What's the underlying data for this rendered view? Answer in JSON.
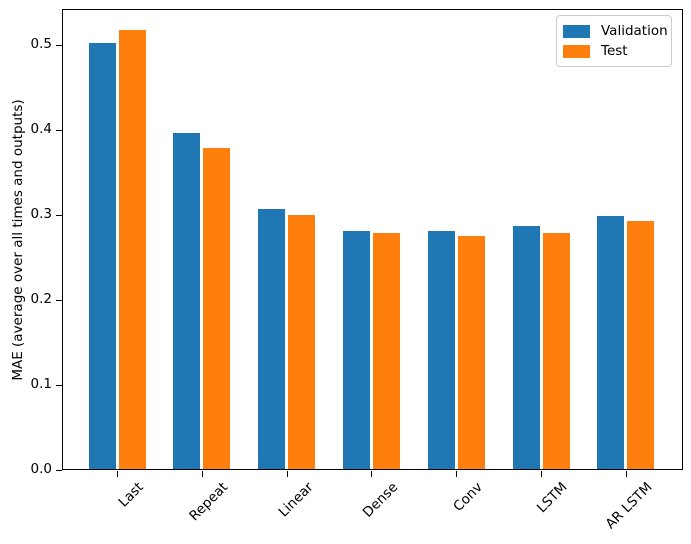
{
  "chart_data": {
    "type": "bar",
    "title": "",
    "xlabel": "",
    "ylabel": "MAE (average over all times and outputs)",
    "categories": [
      "Last",
      "Repeat",
      "Linear",
      "Dense",
      "Conv",
      "LSTM",
      "AR LSTM"
    ],
    "series": [
      {
        "name": "Validation",
        "color": "#1f77b4",
        "values": [
          0.501,
          0.395,
          0.306,
          0.28,
          0.28,
          0.286,
          0.298
        ]
      },
      {
        "name": "Test",
        "color": "#ff7f0e",
        "values": [
          0.516,
          0.377,
          0.299,
          0.277,
          0.274,
          0.277,
          0.292
        ]
      }
    ],
    "yticks": [
      0.0,
      0.1,
      0.2,
      0.3,
      0.4,
      0.5
    ],
    "ytick_labels": [
      "0.0",
      "0.1",
      "0.2",
      "0.3",
      "0.4",
      "0.5"
    ],
    "ylim": [
      0,
      0.542
    ],
    "grid": false,
    "legend_position": "upper right",
    "x_tick_rotation_deg": 45,
    "bar_width_fraction": 0.32
  },
  "legend": {
    "items": [
      {
        "label": "Validation"
      },
      {
        "label": "Test"
      }
    ]
  }
}
